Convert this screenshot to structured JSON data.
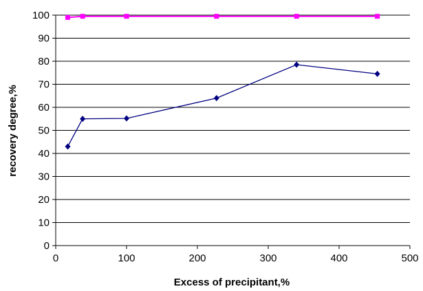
{
  "chart_data": {
    "type": "line",
    "title": "",
    "xlabel": "Excess of precipitant,%",
    "ylabel": "recovery degree,%",
    "xlim": [
      0,
      500
    ],
    "ylim": [
      0,
      100
    ],
    "x_ticks": [
      0,
      100,
      200,
      300,
      400,
      500
    ],
    "y_ticks": [
      0,
      10,
      20,
      30,
      40,
      50,
      60,
      70,
      80,
      90,
      100
    ],
    "grid": "horizontal",
    "legend": "none",
    "series": [
      {
        "color": "#ff00ff",
        "marker": "square",
        "x": [
          17,
          38,
          100,
          227,
          340,
          454
        ],
        "y": [
          99,
          99.5,
          99.5,
          99.5,
          99.5,
          99.5
        ]
      },
      {
        "color": "#000080",
        "marker": "diamond",
        "x": [
          17,
          38,
          100,
          227,
          340,
          454
        ],
        "y": [
          43,
          55,
          55.2,
          64,
          78.5,
          74.5
        ]
      }
    ]
  }
}
